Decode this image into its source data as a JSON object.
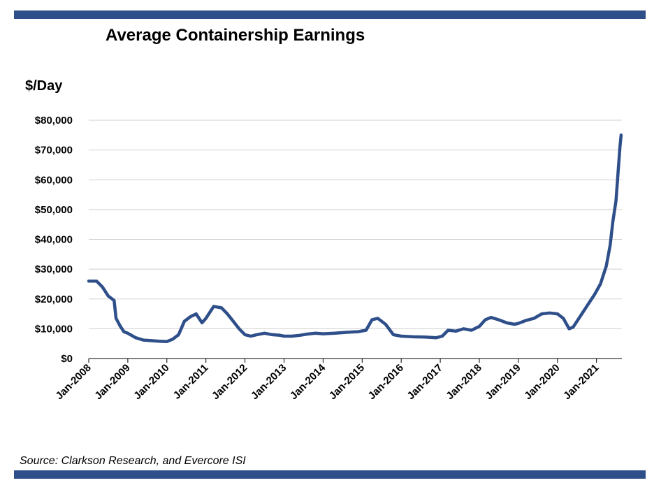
{
  "header": {
    "title": "Average Containership Earnings"
  },
  "footer": {
    "source": "Source: Clarkson Research, and Evercore ISI"
  },
  "colors": {
    "frame_bar": "#2f4f8a",
    "series_line": "#2f4f8a",
    "grid": "#d0d0d0"
  },
  "chart_data": {
    "type": "line",
    "title": "Average Containership Earnings",
    "ylabel": "$/Day",
    "xlabel": "",
    "ylim": [
      0,
      80000
    ],
    "y_ticks": [
      {
        "value": 0,
        "label": "$0"
      },
      {
        "value": 10000,
        "label": "$10,000"
      },
      {
        "value": 20000,
        "label": "$20,000"
      },
      {
        "value": 30000,
        "label": "$30,000"
      },
      {
        "value": 40000,
        "label": "$40,000"
      },
      {
        "value": 50000,
        "label": "$50,000"
      },
      {
        "value": 60000,
        "label": "$60,000"
      },
      {
        "value": 70000,
        "label": "$70,000"
      },
      {
        "value": 80000,
        "label": "$80,000"
      }
    ],
    "x_range_years": [
      2008.0,
      2021.65
    ],
    "x_ticks": [
      {
        "value": 2008,
        "label": "Jan-2008"
      },
      {
        "value": 2009,
        "label": "Jan-2009"
      },
      {
        "value": 2010,
        "label": "Jan-2010"
      },
      {
        "value": 2011,
        "label": "Jan-2011"
      },
      {
        "value": 2012,
        "label": "Jan-2012"
      },
      {
        "value": 2013,
        "label": "Jan-2013"
      },
      {
        "value": 2014,
        "label": "Jan-2014"
      },
      {
        "value": 2015,
        "label": "Jan-2015"
      },
      {
        "value": 2016,
        "label": "Jan-2016"
      },
      {
        "value": 2017,
        "label": "Jan-2017"
      },
      {
        "value": 2018,
        "label": "Jan-2018"
      },
      {
        "value": 2019,
        "label": "Jan-2019"
      },
      {
        "value": 2020,
        "label": "Jan-2020"
      },
      {
        "value": 2021,
        "label": "Jan-2021"
      }
    ],
    "series": [
      {
        "name": "Average Containership Earnings",
        "points": [
          [
            2008.0,
            26000
          ],
          [
            2008.2,
            26000
          ],
          [
            2008.35,
            24000
          ],
          [
            2008.5,
            21000
          ],
          [
            2008.65,
            19500
          ],
          [
            2008.7,
            13500
          ],
          [
            2008.8,
            11000
          ],
          [
            2008.9,
            9000
          ],
          [
            2009.0,
            8500
          ],
          [
            2009.2,
            7000
          ],
          [
            2009.4,
            6200
          ],
          [
            2009.6,
            6000
          ],
          [
            2009.8,
            5800
          ],
          [
            2010.0,
            5700
          ],
          [
            2010.15,
            6500
          ],
          [
            2010.3,
            8000
          ],
          [
            2010.45,
            12500
          ],
          [
            2010.6,
            14000
          ],
          [
            2010.75,
            15000
          ],
          [
            2010.9,
            12000
          ],
          [
            2011.0,
            13500
          ],
          [
            2011.1,
            15500
          ],
          [
            2011.2,
            17500
          ],
          [
            2011.4,
            17000
          ],
          [
            2011.55,
            15000
          ],
          [
            2011.7,
            12500
          ],
          [
            2011.85,
            10000
          ],
          [
            2012.0,
            8000
          ],
          [
            2012.15,
            7500
          ],
          [
            2012.3,
            8000
          ],
          [
            2012.5,
            8500
          ],
          [
            2012.7,
            8000
          ],
          [
            2012.9,
            7800
          ],
          [
            2013.0,
            7500
          ],
          [
            2013.2,
            7500
          ],
          [
            2013.4,
            7800
          ],
          [
            2013.6,
            8200
          ],
          [
            2013.8,
            8500
          ],
          [
            2014.0,
            8300
          ],
          [
            2014.3,
            8500
          ],
          [
            2014.6,
            8800
          ],
          [
            2014.9,
            9000
          ],
          [
            2015.1,
            9500
          ],
          [
            2015.25,
            13000
          ],
          [
            2015.4,
            13500
          ],
          [
            2015.6,
            11500
          ],
          [
            2015.8,
            8000
          ],
          [
            2016.0,
            7500
          ],
          [
            2016.3,
            7300
          ],
          [
            2016.6,
            7200
          ],
          [
            2016.9,
            7000
          ],
          [
            2017.05,
            7500
          ],
          [
            2017.2,
            9500
          ],
          [
            2017.4,
            9200
          ],
          [
            2017.6,
            10000
          ],
          [
            2017.8,
            9500
          ],
          [
            2018.0,
            10800
          ],
          [
            2018.15,
            13000
          ],
          [
            2018.3,
            13800
          ],
          [
            2018.5,
            13000
          ],
          [
            2018.7,
            12000
          ],
          [
            2018.9,
            11500
          ],
          [
            2019.0,
            11800
          ],
          [
            2019.2,
            12800
          ],
          [
            2019.4,
            13500
          ],
          [
            2019.6,
            15000
          ],
          [
            2019.8,
            15300
          ],
          [
            2020.0,
            15000
          ],
          [
            2020.15,
            13500
          ],
          [
            2020.3,
            10000
          ],
          [
            2020.4,
            10500
          ],
          [
            2020.6,
            14500
          ],
          [
            2020.8,
            18500
          ],
          [
            2020.95,
            21500
          ],
          [
            2021.1,
            25000
          ],
          [
            2021.25,
            31000
          ],
          [
            2021.35,
            38000
          ],
          [
            2021.42,
            46000
          ],
          [
            2021.5,
            53000
          ],
          [
            2021.55,
            62000
          ],
          [
            2021.6,
            71000
          ],
          [
            2021.63,
            75000
          ]
        ]
      }
    ]
  }
}
